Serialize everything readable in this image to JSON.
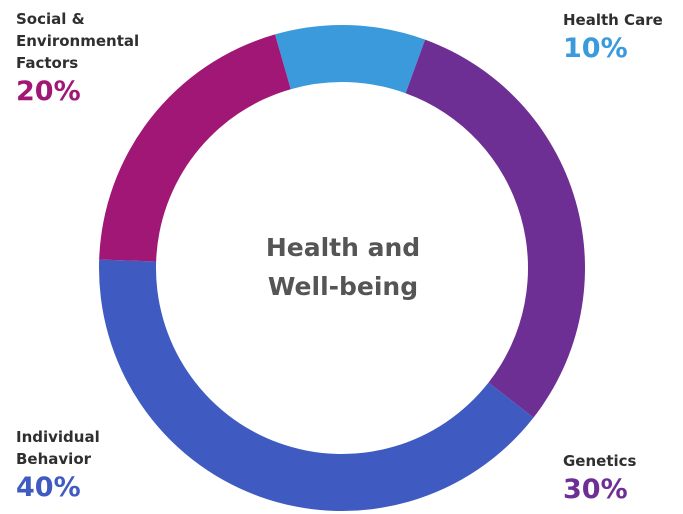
{
  "chart_data": {
    "type": "pie",
    "style": "donut",
    "center_title": "Health and\nWell-being",
    "slices": [
      {
        "label": "Health Care",
        "label_lines": "Health Care",
        "value": 10,
        "display": "10%",
        "color": "#3a9adb"
      },
      {
        "label": "Genetics",
        "label_lines": "Genetics",
        "value": 30,
        "display": "30%",
        "color": "#6e2f95"
      },
      {
        "label": "Individual Behavior",
        "label_lines": "Individual\nBehavior",
        "value": 40,
        "display": "40%",
        "color": "#3f5ac0"
      },
      {
        "label": "Social & Environmental Factors",
        "label_lines": "Social &\nEnvironmental\nFactors",
        "value": 20,
        "display": "20%",
        "color": "#a01776"
      }
    ]
  }
}
